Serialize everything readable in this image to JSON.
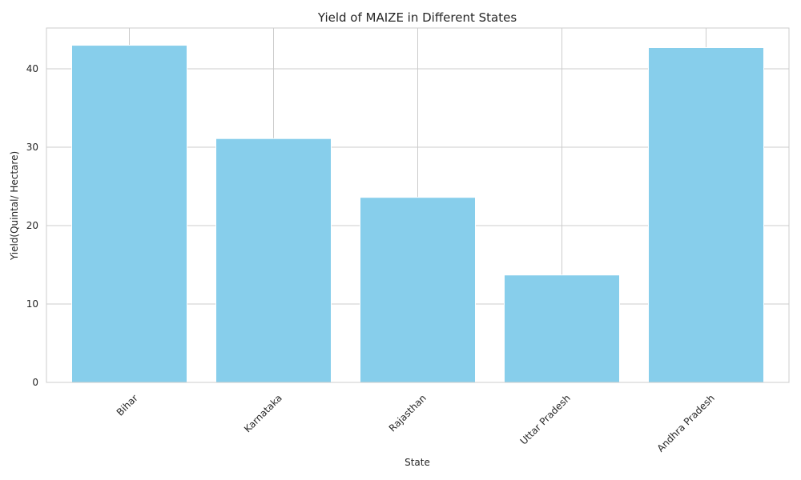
{
  "chart_data": {
    "type": "bar",
    "title": "Yield of MAIZE in Different States",
    "xlabel": "State",
    "ylabel": "Yield(Quintal/ Hectare)",
    "categories": [
      "Bihar",
      "Karnataka",
      "Rajasthan",
      "Uttar Pradesh",
      "Andhra Pradesh"
    ],
    "values": [
      43.0,
      31.1,
      23.6,
      13.7,
      42.7
    ],
    "ylim": [
      0,
      45.2
    ],
    "yticks": [
      0,
      10,
      20,
      30,
      40
    ],
    "grid": true,
    "bar_color": "#87CEEB",
    "x_tick_rotation_deg": 45
  }
}
